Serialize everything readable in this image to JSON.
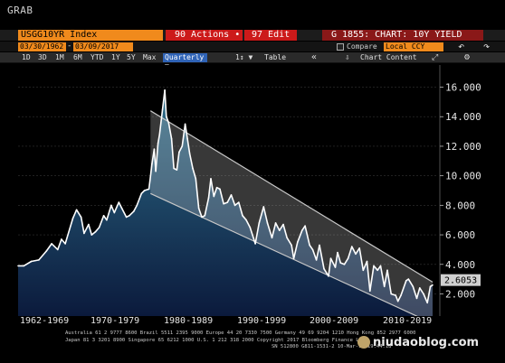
{
  "header": {
    "grab_label": "GRAB"
  },
  "toolbar": {
    "ticker": "USGG10YR Index",
    "actions_label": "90 Actions •",
    "edit_label": "97 Edit •",
    "chart_title": "G 1855: CHART: 10Y YIELD"
  },
  "range": {
    "start_date": "03/30/1962",
    "separator": "-",
    "end_date": "03/09/2017",
    "compare_label": "Compare",
    "currency": "Local CCY"
  },
  "periods": [
    "1D",
    "3D",
    "1M",
    "6M",
    "YTD",
    "1Y",
    "5Y",
    "Max"
  ],
  "controls": {
    "frequency": "Quarterly ▼",
    "type_select": "1↕ ▼",
    "table_label": "Table",
    "chart_content_label": "Chart Content",
    "collapse_icon": "double-chevron-left-icon",
    "download_icon": "download-icon",
    "expand_icon": "expand-icon",
    "gear_icon": "gear-icon",
    "back_icon": "back-arrow-icon",
    "forward_icon": "forward-arrow-icon"
  },
  "chart_data": {
    "type": "area",
    "title": "",
    "xlabel": "",
    "ylabel": "",
    "ylim": [
      0.5,
      17.5
    ],
    "y_ticks": [
      "2.000",
      "4.000",
      "6.000",
      "8.000",
      "10.000",
      "12.000",
      "14.000",
      "16.000"
    ],
    "last_value_label": "2.6053",
    "decade_labels": [
      "1962-1969",
      "1970-1979",
      "1980-1989",
      "1990-1999",
      "2000-2009",
      "2010-2019"
    ],
    "colors": {
      "line": "#ffffff",
      "fill_top": "#2e6e8a",
      "fill_bottom": "#0b1a3c",
      "channel": "#c8c8c8",
      "last_label_bg": "#cfcfcf"
    },
    "channel": {
      "upper": [
        [
          1979.8,
          14.4
        ],
        [
          2017.2,
          2.8
        ]
      ],
      "lower": [
        [
          1979.8,
          8.8
        ],
        [
          2017.2,
          0.0
        ]
      ]
    },
    "series": [
      {
        "values": [
          [
            1962.25,
            3.9
          ],
          [
            1963.0,
            3.9
          ],
          [
            1964.0,
            4.2
          ],
          [
            1965.0,
            4.3
          ],
          [
            1966.0,
            4.9
          ],
          [
            1966.7,
            5.4
          ],
          [
            1967.5,
            5.0
          ],
          [
            1968.0,
            5.7
          ],
          [
            1968.5,
            5.4
          ],
          [
            1969.5,
            7.1
          ],
          [
            1970.0,
            7.7
          ],
          [
            1970.6,
            7.2
          ],
          [
            1971.0,
            6.1
          ],
          [
            1971.6,
            6.7
          ],
          [
            1972.0,
            6.0
          ],
          [
            1972.5,
            6.2
          ],
          [
            1973.0,
            6.5
          ],
          [
            1973.6,
            7.3
          ],
          [
            1974.0,
            7.0
          ],
          [
            1974.6,
            8.0
          ],
          [
            1975.0,
            7.5
          ],
          [
            1975.6,
            8.2
          ],
          [
            1976.0,
            7.8
          ],
          [
            1976.6,
            7.2
          ],
          [
            1977.0,
            7.3
          ],
          [
            1977.6,
            7.6
          ],
          [
            1978.0,
            8.0
          ],
          [
            1978.6,
            8.8
          ],
          [
            1979.0,
            9.0
          ],
          [
            1979.6,
            9.1
          ],
          [
            1980.0,
            10.8
          ],
          [
            1980.3,
            11.8
          ],
          [
            1980.5,
            10.3
          ],
          [
            1980.8,
            12.2
          ],
          [
            1981.0,
            12.8
          ],
          [
            1981.4,
            14.5
          ],
          [
            1981.7,
            15.8
          ],
          [
            1981.9,
            14.0
          ],
          [
            1982.2,
            13.6
          ],
          [
            1982.6,
            12.5
          ],
          [
            1982.9,
            10.5
          ],
          [
            1983.3,
            10.4
          ],
          [
            1983.6,
            11.6
          ],
          [
            1984.0,
            12.0
          ],
          [
            1984.4,
            13.5
          ],
          [
            1984.7,
            12.5
          ],
          [
            1985.0,
            11.5
          ],
          [
            1985.4,
            10.5
          ],
          [
            1985.8,
            9.8
          ],
          [
            1986.2,
            7.8
          ],
          [
            1986.6,
            7.2
          ],
          [
            1987.0,
            7.3
          ],
          [
            1987.5,
            8.5
          ],
          [
            1987.8,
            9.8
          ],
          [
            1988.2,
            8.6
          ],
          [
            1988.6,
            9.2
          ],
          [
            1989.0,
            9.1
          ],
          [
            1989.5,
            8.1
          ],
          [
            1990.0,
            8.2
          ],
          [
            1990.5,
            8.7
          ],
          [
            1991.0,
            8.0
          ],
          [
            1991.5,
            8.2
          ],
          [
            1992.0,
            7.3
          ],
          [
            1992.5,
            7.0
          ],
          [
            1993.0,
            6.5
          ],
          [
            1993.7,
            5.4
          ],
          [
            1994.2,
            6.8
          ],
          [
            1994.8,
            7.9
          ],
          [
            1995.3,
            6.8
          ],
          [
            1995.9,
            5.8
          ],
          [
            1996.4,
            6.8
          ],
          [
            1996.9,
            6.3
          ],
          [
            1997.4,
            6.7
          ],
          [
            1997.9,
            5.8
          ],
          [
            1998.5,
            5.3
          ],
          [
            1998.8,
            4.4
          ],
          [
            1999.3,
            5.5
          ],
          [
            1999.9,
            6.3
          ],
          [
            2000.3,
            6.6
          ],
          [
            2000.9,
            5.3
          ],
          [
            2001.3,
            5.0
          ],
          [
            2001.8,
            4.3
          ],
          [
            2002.2,
            5.3
          ],
          [
            2002.8,
            3.7
          ],
          [
            2003.4,
            3.2
          ],
          [
            2003.7,
            4.4
          ],
          [
            2004.3,
            3.8
          ],
          [
            2004.6,
            4.8
          ],
          [
            2005.0,
            4.1
          ],
          [
            2005.5,
            4.0
          ],
          [
            2006.0,
            4.4
          ],
          [
            2006.5,
            5.2
          ],
          [
            2007.0,
            4.7
          ],
          [
            2007.5,
            5.1
          ],
          [
            2008.0,
            3.6
          ],
          [
            2008.5,
            4.2
          ],
          [
            2008.9,
            2.2
          ],
          [
            2009.4,
            3.9
          ],
          [
            2009.9,
            3.6
          ],
          [
            2010.3,
            3.9
          ],
          [
            2010.8,
            2.5
          ],
          [
            2011.2,
            3.6
          ],
          [
            2011.7,
            2.0
          ],
          [
            2012.3,
            1.9
          ],
          [
            2012.6,
            1.5
          ],
          [
            2013.0,
            1.9
          ],
          [
            2013.7,
            2.9
          ],
          [
            2014.0,
            3.0
          ],
          [
            2014.6,
            2.5
          ],
          [
            2015.1,
            1.7
          ],
          [
            2015.5,
            2.4
          ],
          [
            2016.0,
            2.0
          ],
          [
            2016.5,
            1.4
          ],
          [
            2016.9,
            2.5
          ],
          [
            2017.2,
            2.6
          ]
        ]
      }
    ]
  },
  "footer": {
    "line1": "Australia 61 2 9777 8600 Brazil 5511 2395 9000 Europe 44 20 7330 7500 Germany 49 69 9204 1210 Hong Kong 852 2977 6000",
    "line2": "Japan 81 3 3201 8900        Singapore 65 6212 1000        U.S. 1 212 318 2000        Copyright 2017 Bloomberg Finance L.P.",
    "line3": "SN 512800 G811-1531-2 10-Mar-17 19:44:18",
    "watermark": "niudaoblog.com",
    "corner_icon": "close-x"
  }
}
